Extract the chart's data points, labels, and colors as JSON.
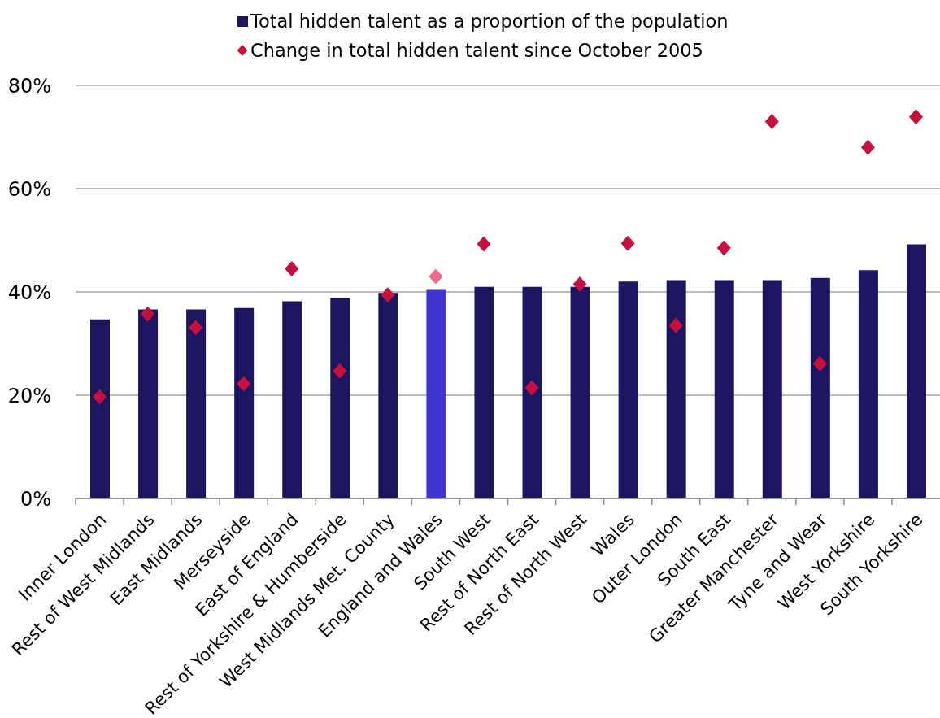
{
  "chart_data": {
    "type": "bar",
    "categories": [
      "Inner London",
      "Rest of West Midlands",
      "East Midlands",
      "Merseyside",
      "East of England",
      "Rest of Yorkshire & Humberside",
      "West Midlands Met. County",
      "England and Wales",
      "South West",
      "Rest of North East",
      "Rest of North West",
      "Wales",
      "Outer London",
      "South East",
      "Greater Manchester",
      "Tyne and Wear",
      "West Yorkshire",
      "South Yorkshire"
    ],
    "series": [
      {
        "name": "Total hidden talent as a proportion of the population",
        "color": "#1c1660",
        "colors": [
          "#1c1660",
          "#1c1660",
          "#1c1660",
          "#1c1660",
          "#1c1660",
          "#1c1660",
          "#1c1660",
          "#3f35d2",
          "#1c1660",
          "#1c1660",
          "#1c1660",
          "#1c1660",
          "#1c1660",
          "#1c1660",
          "#1c1660",
          "#1c1660",
          "#1c1660",
          "#1c1660"
        ],
        "values": [
          34.7,
          36.6,
          36.6,
          36.9,
          38.2,
          38.8,
          39.8,
          40.4,
          41.0,
          41.0,
          41.0,
          42.0,
          42.3,
          42.3,
          42.3,
          42.7,
          44.2,
          49.2
        ]
      },
      {
        "name": "Change in total hidden talent since October 2005",
        "type": "scatter",
        "marker": "diamond",
        "color": "#c8103e",
        "colors": [
          "#c8103e",
          "#c8103e",
          "#c8103e",
          "#c8103e",
          "#c8103e",
          "#c8103e",
          "#c8103e",
          "#f06a8a",
          "#c8103e",
          "#c8103e",
          "#c8103e",
          "#c8103e",
          "#c8103e",
          "#c8103e",
          "#c8103e",
          "#c8103e",
          "#c8103e",
          "#c8103e"
        ],
        "values": [
          19.7,
          35.7,
          33.1,
          22.2,
          44.5,
          24.7,
          39.4,
          43.0,
          49.3,
          21.4,
          41.5,
          49.4,
          33.5,
          48.5,
          73.0,
          26.1,
          68.0,
          73.9
        ]
      }
    ],
    "ylim": [
      0,
      80
    ],
    "yticks": [
      {
        "value": 0,
        "label": "0%"
      },
      {
        "value": 20,
        "label": "20%"
      },
      {
        "value": 40,
        "label": "40%"
      },
      {
        "value": 60,
        "label": "60%"
      },
      {
        "value": 80,
        "label": "80%"
      }
    ],
    "grid": "y",
    "legend": "top"
  }
}
